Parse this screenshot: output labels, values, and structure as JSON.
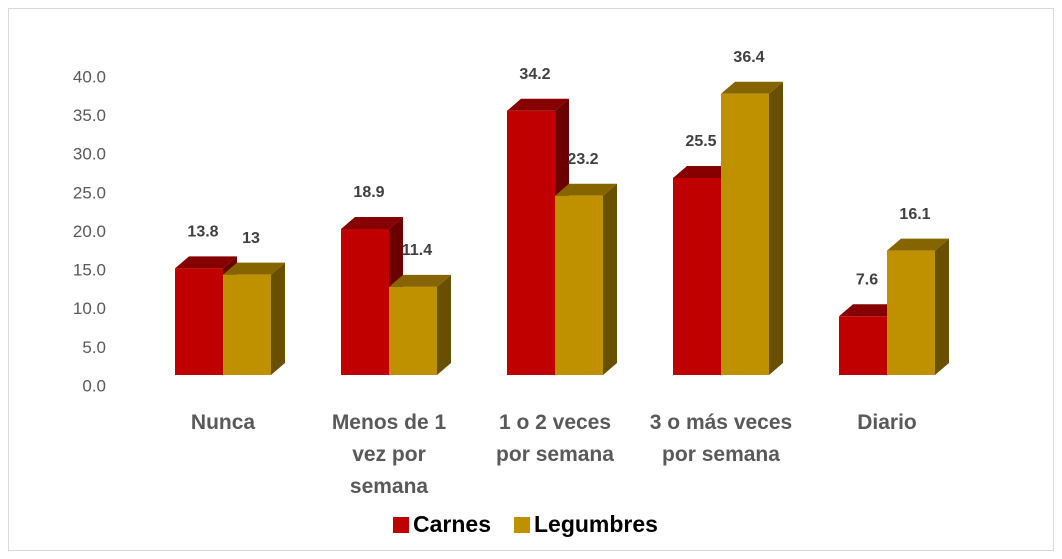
{
  "chart_data": {
    "type": "bar3d",
    "categories": [
      "Nunca",
      "Menos de 1 vez por semana",
      "1 o 2 veces por semana",
      "3 o más veces por semana",
      "Diario"
    ],
    "series": [
      {
        "name": "Carnes",
        "color": "#c00000",
        "values": [
          13.8,
          18.9,
          34.2,
          25.5,
          7.6
        ]
      },
      {
        "name": "Legumbres",
        "color": "#bf9000",
        "values": [
          13,
          11.4,
          23.2,
          36.4,
          16.1
        ]
      }
    ],
    "ylim": [
      0,
      40
    ],
    "yticks": [
      {
        "value": 0,
        "label": "0.0"
      },
      {
        "value": 5,
        "label": "5.0"
      },
      {
        "value": 10,
        "label": "10.0"
      },
      {
        "value": 15,
        "label": "15.0"
      },
      {
        "value": 20,
        "label": "20.0"
      },
      {
        "value": 25,
        "label": "25.0"
      },
      {
        "value": 30,
        "label": "30.0"
      },
      {
        "value": 35,
        "label": "35.0"
      },
      {
        "value": 40,
        "label": "40.0"
      }
    ],
    "legend": "bottom"
  }
}
